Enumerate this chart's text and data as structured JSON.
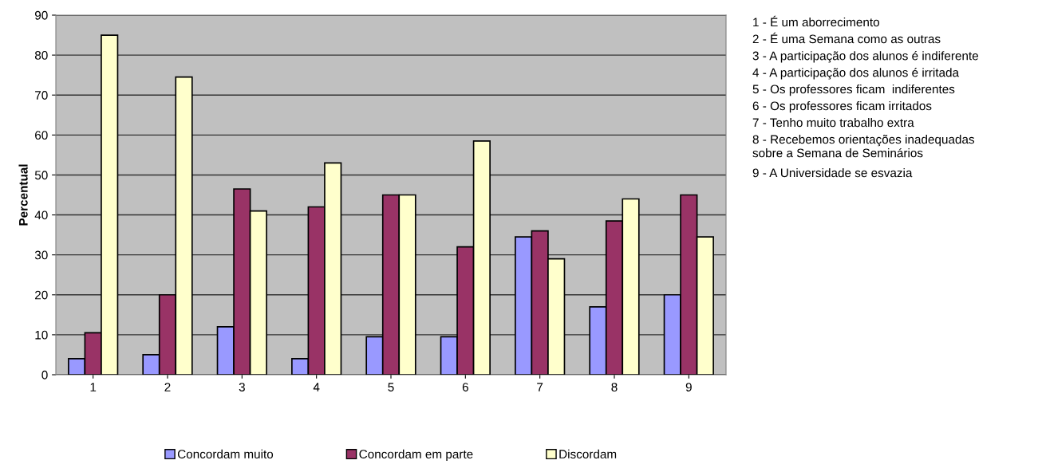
{
  "chart_data": {
    "type": "bar",
    "ylabel": "Percentual",
    "categories": [
      "1",
      "2",
      "3",
      "4",
      "5",
      "6",
      "7",
      "8",
      "9"
    ],
    "series": [
      {
        "name": "Concordam muito",
        "color": "#9999ff",
        "values": [
          4,
          5,
          12,
          4,
          9.5,
          9.5,
          34.5,
          17,
          20
        ]
      },
      {
        "name": "Concordam em parte",
        "color": "#993366",
        "values": [
          10.5,
          20,
          46.5,
          42,
          45,
          32,
          36,
          38.5,
          45
        ]
      },
      {
        "name": "Discordam",
        "color": "#ffffcc",
        "values": [
          85,
          74.5,
          41,
          53,
          45,
          58.5,
          29,
          44,
          34.5
        ]
      }
    ],
    "ylim": [
      0,
      90
    ],
    "yticks": [
      0,
      10,
      20,
      30,
      40,
      50,
      60,
      70,
      80,
      90
    ],
    "grid": "y",
    "legend": "bottom",
    "annotations": [
      "1 - É um aborrecimento",
      "2 - É uma Semana como as outras",
      "3 - A participação dos alunos é indiferente",
      "4 - A participação dos alunos é irritada",
      "5 - Os professores ficam  indiferentes",
      "6 - Os professores ficam irritados",
      "7 - Tenho muito trabalho extra",
      "8 - Recebemos orientações inadequadas\nsobre a Semana de Seminários",
      "9 - A Universidade se esvazia"
    ]
  }
}
